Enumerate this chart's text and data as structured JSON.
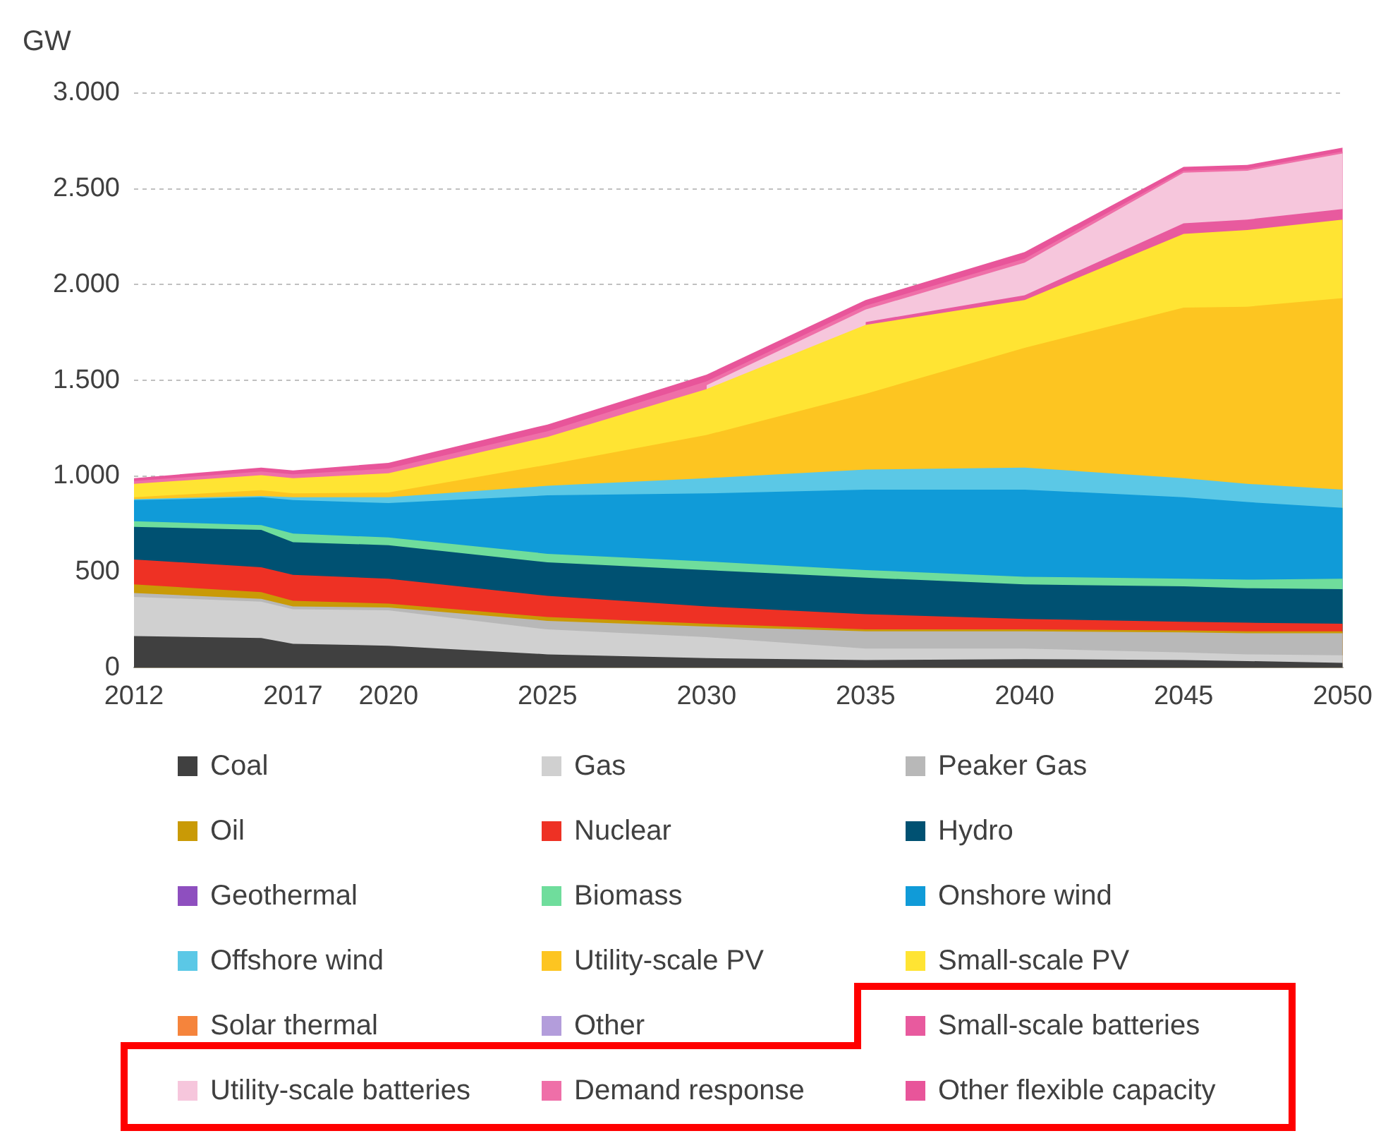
{
  "chart_data": {
    "type": "area",
    "ylabel": "GW",
    "stacked": true,
    "grid": "y",
    "legend": "bottom",
    "x": [
      2012,
      2016,
      2017,
      2020,
      2025,
      2030,
      2035,
      2040,
      2045,
      2047,
      2050
    ],
    "xlim": [
      2012,
      2050
    ],
    "xticks": [
      2012,
      2017,
      2020,
      2025,
      2030,
      2035,
      2040,
      2045,
      2050
    ],
    "ylim": [
      0,
      3000
    ],
    "yticks": [
      0,
      500,
      {
        "value": 1000,
        "label": "1.000"
      },
      {
        "value": 1500,
        "label": "1.500"
      },
      {
        "value": 2000,
        "label": "2.000"
      },
      {
        "value": 2500,
        "label": "2.500"
      },
      {
        "value": 3000,
        "label": "3.000"
      }
    ],
    "series": [
      {
        "name": "Coal",
        "color": "#404040",
        "values": [
          165,
          155,
          125,
          115,
          70,
          50,
          40,
          45,
          40,
          35,
          25
        ]
      },
      {
        "name": "Gas",
        "color": "#d0d0d0",
        "values": [
          205,
          190,
          180,
          185,
          130,
          110,
          60,
          55,
          40,
          35,
          40
        ]
      },
      {
        "name": "Peaker Gas",
        "color": "#b8b8b8",
        "values": [
          20,
          15,
          15,
          15,
          45,
          55,
          90,
          90,
          105,
          110,
          115
        ]
      },
      {
        "name": "Oil",
        "color": "#c99a06",
        "values": [
          45,
          35,
          30,
          20,
          20,
          15,
          10,
          10,
          10,
          10,
          10
        ]
      },
      {
        "name": "Nuclear",
        "color": "#ee3124",
        "values": [
          130,
          130,
          135,
          130,
          110,
          90,
          80,
          55,
          45,
          45,
          40
        ]
      },
      {
        "name": "Hydro",
        "color": "#005172",
        "values": [
          170,
          195,
          170,
          175,
          175,
          190,
          190,
          180,
          185,
          180,
          180
        ]
      },
      {
        "name": "Geothermal",
        "color": "#8e4fbf",
        "values": [
          null,
          null,
          null,
          null,
          null,
          null,
          null,
          null,
          null,
          null,
          null
        ]
      },
      {
        "name": "Biomass",
        "color": "#6fdd9c",
        "values": [
          30,
          25,
          45,
          40,
          45,
          45,
          40,
          40,
          40,
          45,
          55
        ]
      },
      {
        "name": "Onshore wind",
        "color": "#109bd8",
        "values": [
          110,
          145,
          175,
          180,
          305,
          355,
          420,
          455,
          425,
          405,
          370
        ]
      },
      {
        "name": "Offshore wind",
        "color": "#5bc8e6",
        "values": [
          5,
          7,
          15,
          30,
          50,
          80,
          105,
          115,
          100,
          95,
          95
        ]
      },
      {
        "name": "Utility-scale PV",
        "color": "#fdc521",
        "values": [
          10,
          30,
          20,
          25,
          110,
          225,
          395,
          625,
          890,
          925,
          1000
        ]
      },
      {
        "name": "Small-scale PV",
        "color": "#ffe433",
        "values": [
          70,
          78,
          80,
          100,
          145,
          240,
          360,
          250,
          385,
          400,
          410
        ]
      },
      {
        "name": "Solar thermal",
        "color": "#f5843c",
        "values": [
          null,
          null,
          null,
          null,
          null,
          null,
          null,
          null,
          null,
          null,
          null
        ]
      },
      {
        "name": "Other",
        "color": "#b39ddb",
        "values": [
          null,
          null,
          null,
          null,
          null,
          null,
          null,
          null,
          null,
          null,
          null
        ]
      },
      {
        "name": "Small-scale batteries",
        "color": "#e85a9e",
        "values": [
          null,
          null,
          null,
          null,
          null,
          null,
          15,
          25,
          55,
          55,
          55
        ]
      },
      {
        "name": "Utility-scale batteries",
        "color": "#f6c6dc",
        "values": [
          null,
          null,
          null,
          null,
          null,
          20,
          65,
          170,
          265,
          255,
          290
        ]
      },
      {
        "name": "Demand response",
        "color": "#ef6fa8",
        "values": [
          15,
          20,
          20,
          25,
          30,
          20,
          20,
          20,
          10,
          10,
          10
        ]
      },
      {
        "name": "Other flexible capacity",
        "color": "#e8559a",
        "values": [
          15,
          20,
          20,
          30,
          35,
          35,
          30,
          35,
          20,
          20,
          20
        ]
      }
    ]
  }
}
